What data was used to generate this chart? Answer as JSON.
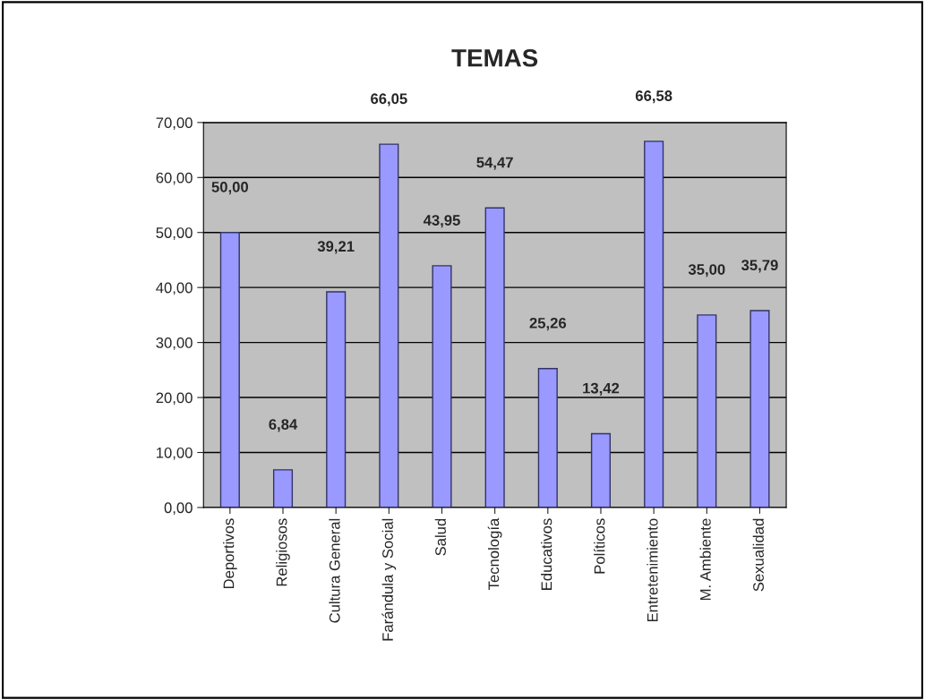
{
  "chart_data": {
    "type": "bar",
    "title": "TEMAS",
    "categories": [
      "Deportivos",
      "Religiosos",
      "Cultura General",
      "Farándula y Social",
      "Salud",
      "Tecnología",
      "Educativos",
      "Políticos",
      "Entretenimiento",
      "M. Ambiente",
      "Sexualidad"
    ],
    "values": [
      50.0,
      6.84,
      39.21,
      66.05,
      43.95,
      54.47,
      25.26,
      13.42,
      66.58,
      35.0,
      35.79
    ],
    "value_labels": [
      "50,00",
      "6,84",
      "39,21",
      "66,05",
      "43,95",
      "54,47",
      "25,26",
      "13,42",
      "66,58",
      "35,00",
      "35,79"
    ],
    "color": "#9999ff",
    "ylim": [
      0,
      70
    ],
    "yticks": [
      {
        "value": 0,
        "label": "0,00"
      },
      {
        "value": 10,
        "label": "10,00"
      },
      {
        "value": 20,
        "label": "20,00"
      },
      {
        "value": 30,
        "label": "30,00"
      },
      {
        "value": 40,
        "label": "40,00"
      },
      {
        "value": 50,
        "label": "50,00"
      },
      {
        "value": 60,
        "label": "60,00"
      },
      {
        "value": 70,
        "label": "70,00"
      }
    ],
    "grid": "y"
  }
}
